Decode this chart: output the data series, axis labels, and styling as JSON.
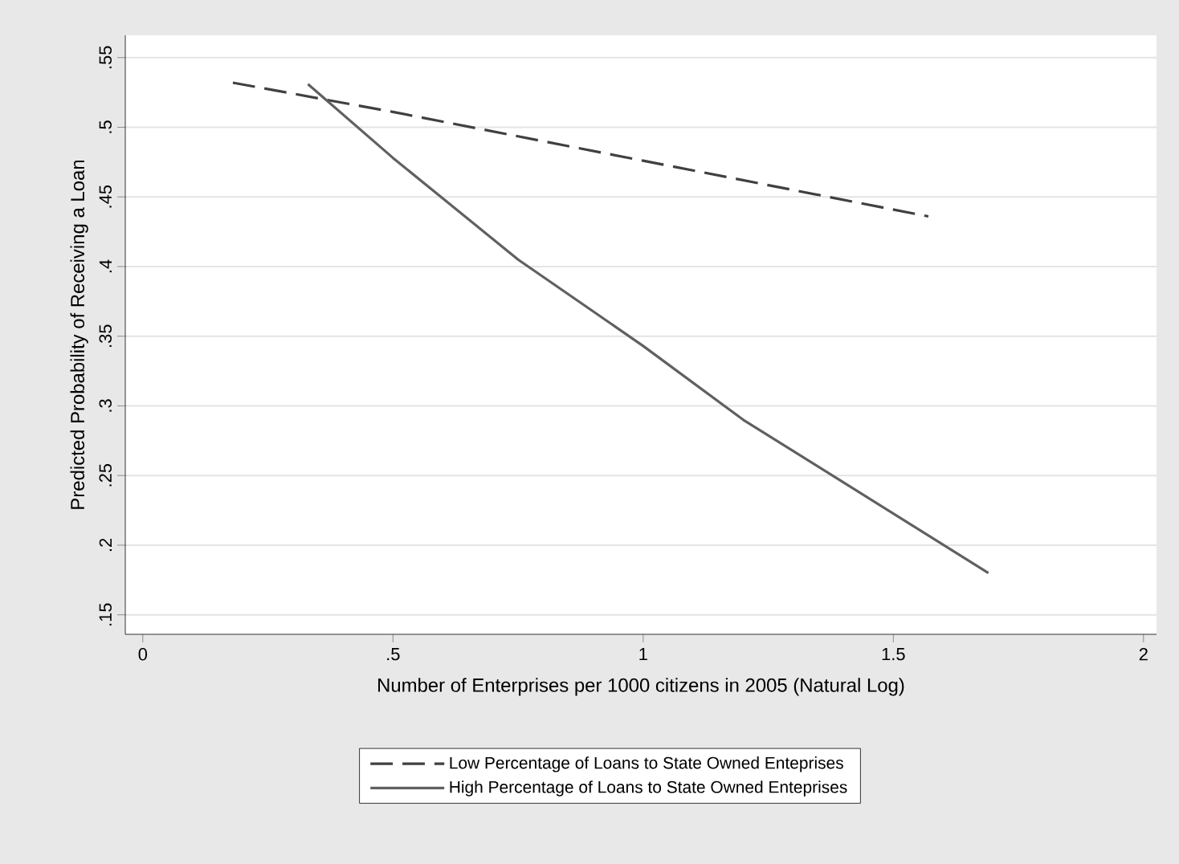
{
  "chart_data": {
    "type": "line",
    "xlabel": "Number of Enterprises per 1000 citizens in 2005 (Natural Log)",
    "ylabel": "Predicted Probability of Receiving a Loan",
    "xlim": [
      -0.035,
      2.026
    ],
    "ylim": [
      0.136,
      0.566
    ],
    "xticks": [
      {
        "value": 0,
        "label": "0"
      },
      {
        "value": 0.5,
        "label": ".5"
      },
      {
        "value": 1,
        "label": "1"
      },
      {
        "value": 1.5,
        "label": "1.5"
      },
      {
        "value": 2,
        "label": "2"
      }
    ],
    "yticks": [
      {
        "value": 0.15,
        "label": ".15"
      },
      {
        "value": 0.2,
        "label": ".2"
      },
      {
        "value": 0.25,
        "label": ".25"
      },
      {
        "value": 0.3,
        "label": ".3"
      },
      {
        "value": 0.35,
        "label": ".35"
      },
      {
        "value": 0.4,
        "label": ".4"
      },
      {
        "value": 0.45,
        "label": ".45"
      },
      {
        "value": 0.5,
        "label": ".5"
      },
      {
        "value": 0.55,
        "label": ".55"
      }
    ],
    "grid": "y",
    "legend": "bottom",
    "series": [
      {
        "name": "Low Percentage of Loans to State Owned Enteprises",
        "color": "#404040",
        "line_style": "dashed",
        "x": [
          0.18,
          0.5,
          1.0,
          1.57
        ],
        "values": [
          0.532,
          0.511,
          0.476,
          0.436
        ]
      },
      {
        "name": "High Percentage of Loans to State Owned Enteprises",
        "color": "#606060",
        "line_style": "solid",
        "x": [
          0.33,
          0.5,
          0.75,
          1.0,
          1.2,
          1.69
        ],
        "values": [
          0.531,
          0.478,
          0.405,
          0.343,
          0.29,
          0.18
        ]
      }
    ]
  }
}
